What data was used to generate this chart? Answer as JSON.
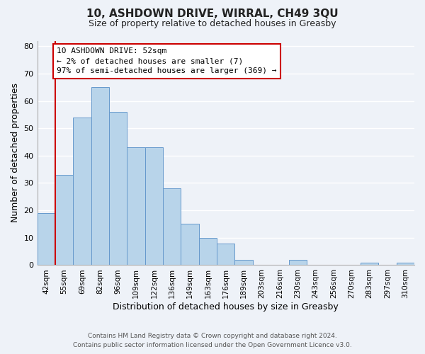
{
  "title": "10, ASHDOWN DRIVE, WIRRAL, CH49 3QU",
  "subtitle": "Size of property relative to detached houses in Greasby",
  "xlabel": "Distribution of detached houses by size in Greasby",
  "ylabel": "Number of detached properties",
  "bar_labels": [
    "42sqm",
    "55sqm",
    "69sqm",
    "82sqm",
    "96sqm",
    "109sqm",
    "122sqm",
    "136sqm",
    "149sqm",
    "163sqm",
    "176sqm",
    "189sqm",
    "203sqm",
    "216sqm",
    "230sqm",
    "243sqm",
    "256sqm",
    "270sqm",
    "283sqm",
    "297sqm",
    "310sqm"
  ],
  "bar_heights": [
    19,
    33,
    54,
    65,
    56,
    43,
    43,
    28,
    15,
    10,
    8,
    2,
    0,
    0,
    2,
    0,
    0,
    0,
    1,
    0,
    1
  ],
  "bar_color": "#b8d4ea",
  "bar_edge_color": "#6699cc",
  "annotation_title": "10 ASHDOWN DRIVE: 52sqm",
  "annotation_line1": "← 2% of detached houses are smaller (7)",
  "annotation_line2": "97% of semi-detached houses are larger (369) →",
  "annotation_box_color": "#ffffff",
  "annotation_box_edge": "#cc0000",
  "vline_color": "#cc0000",
  "ylim": [
    0,
    82
  ],
  "yticks": [
    0,
    10,
    20,
    30,
    40,
    50,
    60,
    70,
    80
  ],
  "footer1": "Contains HM Land Registry data © Crown copyright and database right 2024.",
  "footer2": "Contains public sector information licensed under the Open Government Licence v3.0.",
  "bg_color": "#eef2f8",
  "grid_color": "#ffffff"
}
